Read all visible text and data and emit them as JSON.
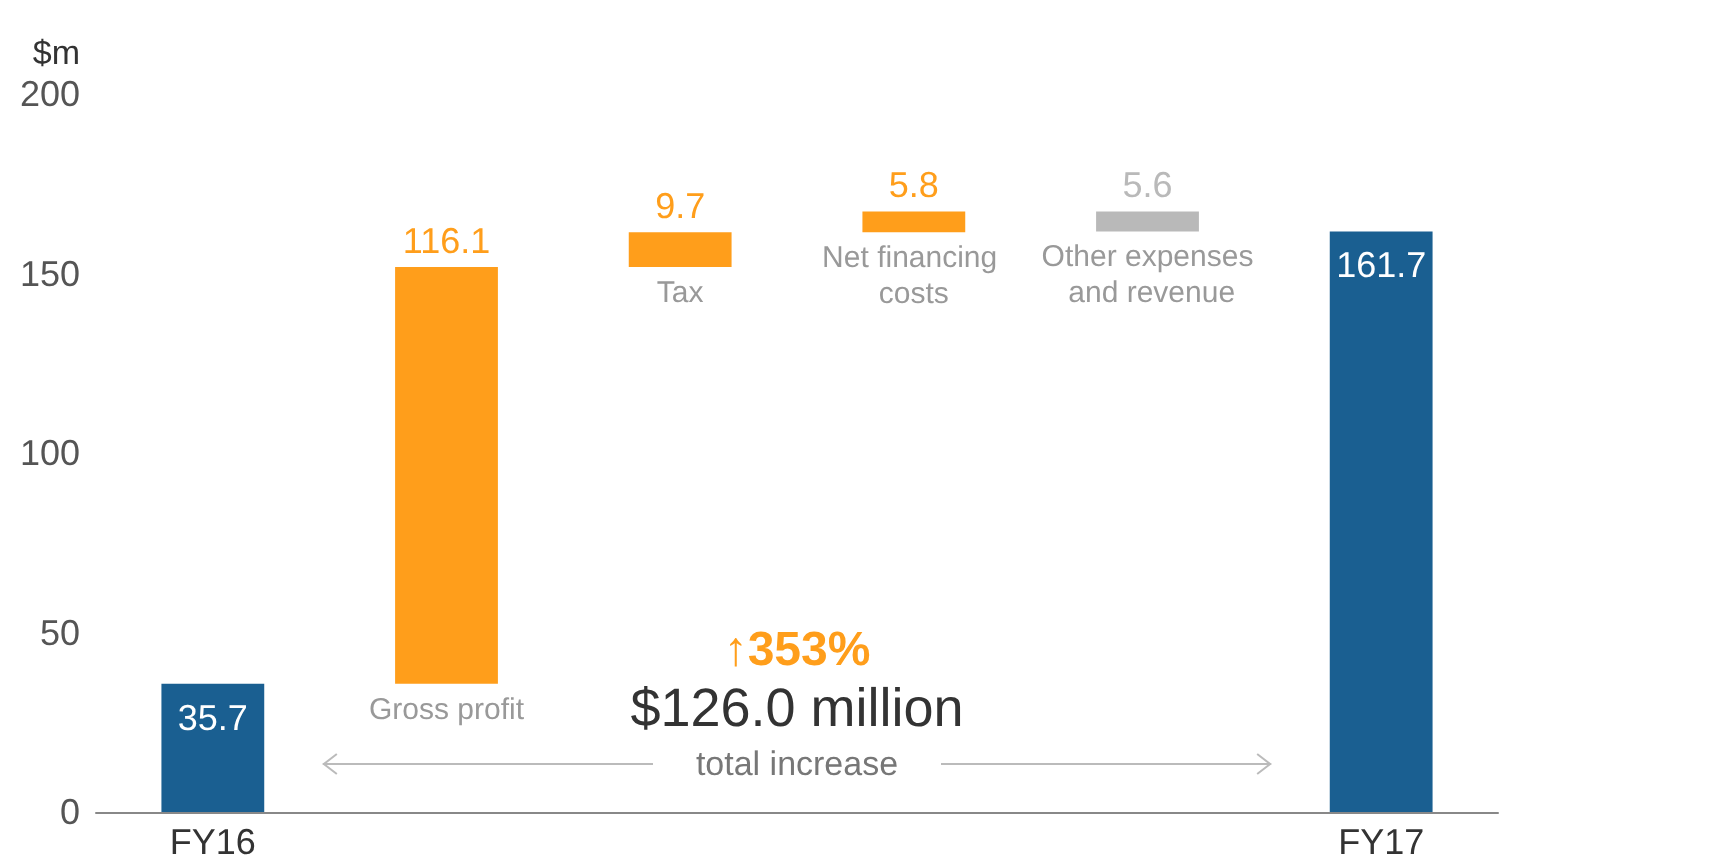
{
  "chart_data": {
    "type": "bar",
    "ylabel": "$m",
    "categories": [
      "FY16",
      "Gross profit",
      "Tax",
      "Net financing costs",
      "Other expenses and revenue",
      "FY17"
    ],
    "values": [
      35.7,
      116.1,
      9.7,
      5.8,
      -5.6,
      161.7
    ],
    "base": [
      0,
      35.7,
      151.8,
      161.5,
      167.3,
      0
    ],
    "colors": [
      "#1a5f91",
      "#ff9e1b",
      "#ff9e1b",
      "#ff9e1b",
      "#b9b9b9",
      "#1a5f91"
    ],
    "value_labels": [
      "35.7",
      "116.1",
      "9.7",
      "5.8",
      "5.6",
      "161.7"
    ],
    "ylim": [
      0,
      200
    ],
    "yticks": [
      0,
      50,
      100,
      150,
      200
    ],
    "grid": false,
    "annotations": [
      "↑353%",
      "$126.0 million",
      "total increase"
    ]
  }
}
